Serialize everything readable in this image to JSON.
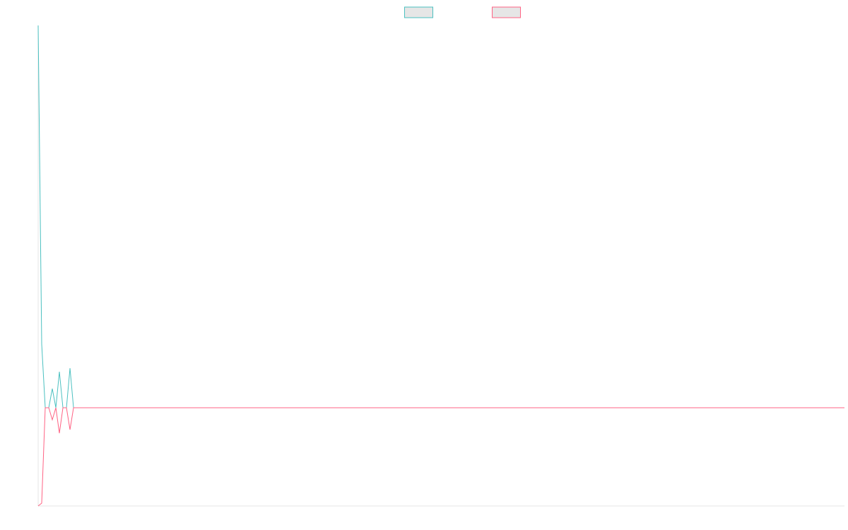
{
  "chart_data": {
    "type": "line",
    "x": [
      0,
      1,
      2,
      3,
      4,
      5,
      6,
      7,
      8,
      9,
      10,
      228
    ],
    "xlim": [
      0,
      228
    ],
    "ylim": [
      -139,
      541
    ],
    "legend": "top",
    "series": [
      {
        "color": "#4bc0c0",
        "values": [
          541,
          90,
          0,
          0,
          27,
          0,
          51,
          0,
          0,
          56,
          0,
          0
        ]
      },
      {
        "color": "#ff6384",
        "values": [
          -139,
          -135,
          0,
          0,
          -17,
          0,
          -36,
          0,
          0,
          -31,
          0,
          0
        ]
      }
    ]
  }
}
